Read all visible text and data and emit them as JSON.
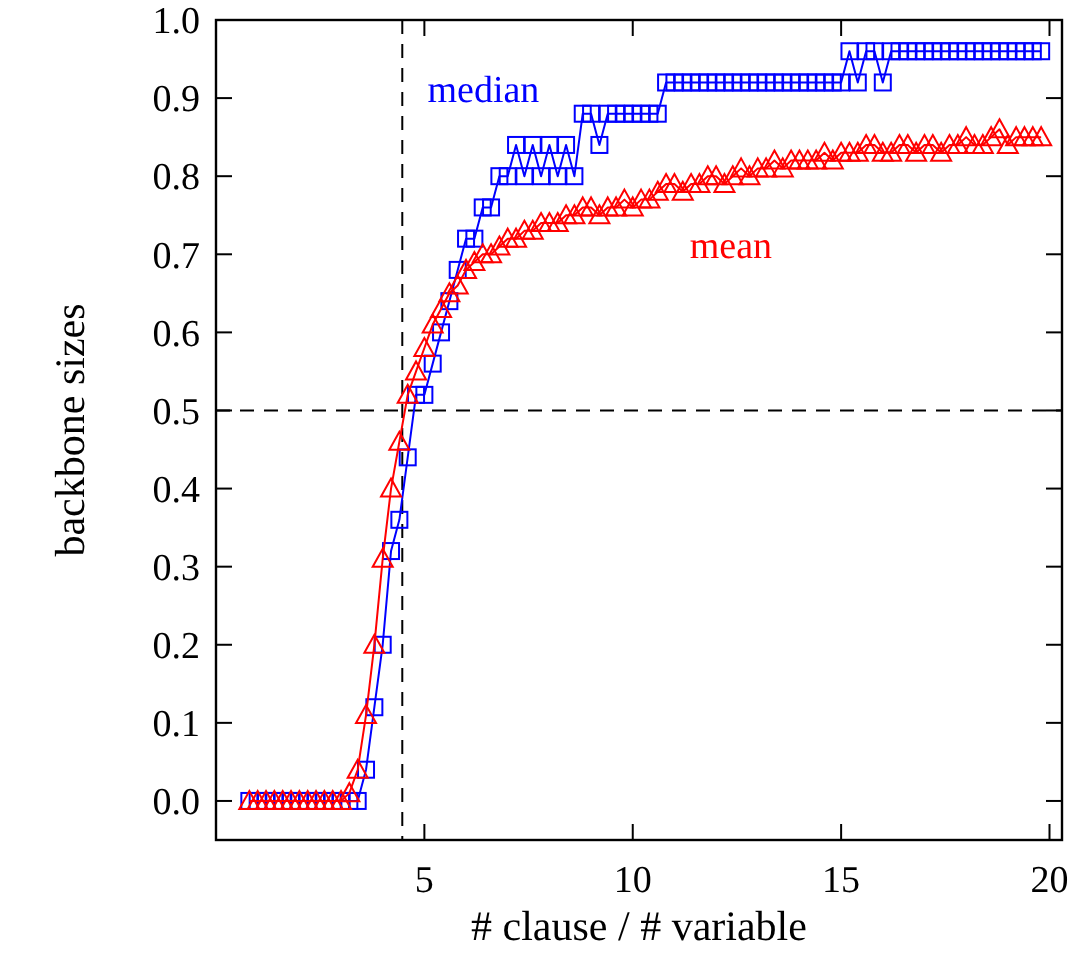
{
  "chart_data": {
    "type": "line",
    "xlabel": "# clause / # variable",
    "ylabel": "backbone sizes",
    "x": [
      0.8,
      1,
      1.2,
      1.4,
      1.6,
      1.8,
      2,
      2.2,
      2.4,
      2.6,
      2.8,
      3,
      3.2,
      3.4,
      3.6,
      3.8,
      4,
      4.2,
      4.4,
      4.6,
      4.8,
      5,
      5.2,
      5.4,
      5.6,
      5.8,
      6,
      6.2,
      6.4,
      6.6,
      6.8,
      7,
      7.2,
      7.4,
      7.6,
      7.8,
      8,
      8.2,
      8.4,
      8.6,
      8.8,
      9,
      9.2,
      9.4,
      9.6,
      9.8,
      10,
      10.2,
      10.4,
      10.6,
      10.8,
      11,
      11.2,
      11.4,
      11.6,
      11.8,
      12,
      12.2,
      12.4,
      12.6,
      12.8,
      13,
      13.2,
      13.4,
      13.6,
      13.8,
      14,
      14.2,
      14.4,
      14.6,
      14.8,
      15,
      15.2,
      15.4,
      15.6,
      15.8,
      16,
      16.2,
      16.4,
      16.6,
      16.8,
      17,
      17.2,
      17.4,
      17.6,
      17.8,
      18,
      18.2,
      18.4,
      18.6,
      18.8,
      19,
      19.2,
      19.4,
      19.6,
      19.8
    ],
    "series": [
      {
        "name": "median",
        "color": "#0000ff",
        "marker": "square",
        "values": [
          0,
          0,
          0,
          0,
          0,
          0,
          0,
          0,
          0,
          0,
          0,
          0,
          0,
          0,
          0.04,
          0.12,
          0.2,
          0.32,
          0.36,
          0.44,
          0.52,
          0.52,
          0.56,
          0.6,
          0.64,
          0.68,
          0.72,
          0.72,
          0.76,
          0.76,
          0.8,
          0.8,
          0.84,
          0.8,
          0.84,
          0.8,
          0.84,
          0.8,
          0.84,
          0.8,
          0.88,
          0.88,
          0.84,
          0.88,
          0.88,
          0.88,
          0.88,
          0.88,
          0.88,
          0.88,
          0.92,
          0.92,
          0.92,
          0.92,
          0.92,
          0.92,
          0.92,
          0.92,
          0.92,
          0.92,
          0.92,
          0.92,
          0.92,
          0.92,
          0.92,
          0.92,
          0.92,
          0.92,
          0.92,
          0.92,
          0.92,
          0.92,
          0.96,
          0.92,
          0.96,
          0.96,
          0.92,
          0.96,
          0.96,
          0.96,
          0.96,
          0.96,
          0.96,
          0.96,
          0.96,
          0.96,
          0.96,
          0.96,
          0.96,
          0.96,
          0.96,
          0.96,
          0.96,
          0.96,
          0.96,
          0.96
        ]
      },
      {
        "name": "mean",
        "color": "#ff0000",
        "marker": "triangle",
        "values": [
          0,
          0,
          0,
          0,
          0,
          0,
          0,
          0,
          0,
          0,
          0,
          0,
          0.01,
          0.04,
          0.11,
          0.2,
          0.31,
          0.4,
          0.46,
          0.52,
          0.55,
          0.58,
          0.61,
          0.63,
          0.65,
          0.66,
          0.68,
          0.69,
          0.7,
          0.7,
          0.71,
          0.72,
          0.72,
          0.73,
          0.73,
          0.74,
          0.74,
          0.74,
          0.75,
          0.75,
          0.76,
          0.76,
          0.75,
          0.76,
          0.76,
          0.77,
          0.76,
          0.77,
          0.77,
          0.78,
          0.79,
          0.79,
          0.78,
          0.79,
          0.79,
          0.8,
          0.8,
          0.79,
          0.8,
          0.81,
          0.8,
          0.81,
          0.81,
          0.82,
          0.81,
          0.82,
          0.82,
          0.82,
          0.82,
          0.83,
          0.82,
          0.83,
          0.83,
          0.83,
          0.84,
          0.84,
          0.83,
          0.83,
          0.84,
          0.84,
          0.83,
          0.84,
          0.84,
          0.83,
          0.84,
          0.84,
          0.85,
          0.84,
          0.84,
          0.85,
          0.86,
          0.84,
          0.85,
          0.85,
          0.85,
          0.85
        ]
      }
    ],
    "xlim": [
      0,
      20.3
    ],
    "ylim": [
      -0.05,
      1.0
    ],
    "xticks": [
      5,
      10,
      15,
      20
    ],
    "yticks": [
      {
        "value": 0,
        "label": "0.0"
      },
      {
        "value": 0.1,
        "label": "0.1"
      },
      {
        "value": 0.2,
        "label": "0.2"
      },
      {
        "value": 0.3,
        "label": "0.3"
      },
      {
        "value": 0.4,
        "label": "0.4"
      },
      {
        "value": 0.5,
        "label": "0.5"
      },
      {
        "value": 0.6,
        "label": "0.6"
      },
      {
        "value": 0.7,
        "label": "0.7"
      },
      {
        "value": 0.8,
        "label": "0.8"
      },
      {
        "value": 0.9,
        "label": "0.9"
      },
      {
        "value": 1,
        "label": "1.0"
      }
    ],
    "ref_lines": [
      {
        "axis": "x",
        "value": 4.47,
        "line_style": "dashed",
        "color": "#000000"
      },
      {
        "axis": "y",
        "value": 0.5,
        "line_style": "dashed",
        "color": "#000000"
      }
    ],
    "grid": false,
    "line_style": "solid"
  }
}
